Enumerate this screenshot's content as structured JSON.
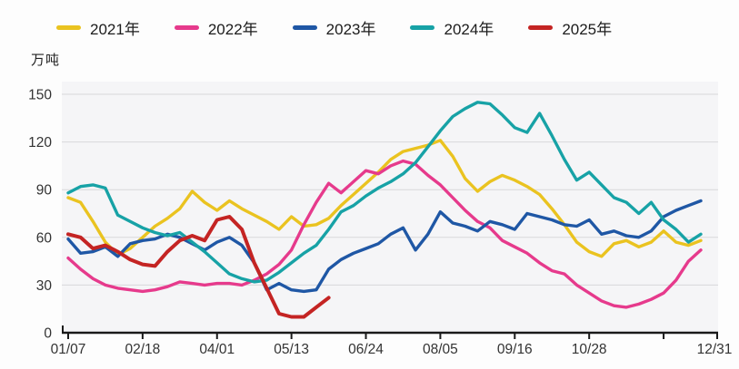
{
  "legend": [
    {
      "label": "2021年",
      "color": "#EAC320"
    },
    {
      "label": "2022年",
      "color": "#E63A8C"
    },
    {
      "label": "2023年",
      "color": "#1F57A5"
    },
    {
      "label": "2024年",
      "color": "#17A2A6"
    },
    {
      "label": "2025年",
      "color": "#C42423"
    }
  ],
  "y_axis": {
    "unit_label": "万吨",
    "tick_values": [
      0,
      30,
      60,
      90,
      120,
      150
    ]
  },
  "x_axis": {
    "ticks": [
      {
        "week": 0,
        "label": "01/07"
      },
      {
        "week": 6,
        "label": "02/18"
      },
      {
        "week": 12,
        "label": "04/01"
      },
      {
        "week": 18,
        "label": "05/13"
      },
      {
        "week": 24,
        "label": "06/24"
      },
      {
        "week": 30,
        "label": "08/05"
      },
      {
        "week": 36,
        "label": "09/16"
      },
      {
        "week": 42,
        "label": "10/28"
      },
      {
        "week": 48,
        "label": ""
      },
      {
        "week": 52.4,
        "label": "12/31"
      }
    ]
  },
  "chart_data": {
    "type": "line",
    "title": "",
    "ylabel": "万吨",
    "ylim": [
      0,
      150
    ],
    "grid": true,
    "legend_position": "top-left",
    "x_unit": "weekly points, 01/07 through 12/31",
    "series": [
      {
        "name": "2021年",
        "color": "#EAC320",
        "values": [
          85,
          82,
          70,
          57,
          49,
          53,
          60,
          67,
          72,
          78,
          89,
          82,
          77,
          83,
          78,
          74,
          70,
          65,
          73,
          67,
          68,
          72,
          80,
          87,
          94,
          101,
          109,
          114,
          116,
          118,
          121,
          111,
          97,
          89,
          95,
          99,
          96,
          92,
          87,
          78,
          68,
          57,
          51,
          48,
          56,
          58,
          54,
          57,
          64,
          57,
          55,
          58
        ]
      },
      {
        "name": "2022年",
        "color": "#E63A8C",
        "values": [
          47,
          40,
          34,
          30,
          28,
          27,
          26,
          27,
          29,
          32,
          31,
          30,
          31,
          31,
          30,
          33,
          37,
          43,
          52,
          68,
          82,
          94,
          88,
          95,
          102,
          100,
          105,
          108,
          106,
          99,
          93,
          85,
          77,
          70,
          66,
          58,
          54,
          50,
          44,
          39,
          37,
          30,
          25,
          20,
          17,
          16,
          18,
          21,
          25,
          33,
          45,
          52
        ]
      },
      {
        "name": "2023年",
        "color": "#1F57A5",
        "values": [
          59,
          50,
          51,
          54,
          48,
          56,
          58,
          59,
          62,
          60,
          56,
          52,
          57,
          60,
          55,
          44,
          27,
          31,
          27,
          26,
          27,
          40,
          46,
          50,
          53,
          56,
          62,
          66,
          52,
          62,
          76,
          69,
          67,
          64,
          70,
          68,
          65,
          75,
          73,
          71,
          68,
          67,
          71,
          62,
          64,
          61,
          60,
          64,
          73,
          77,
          80,
          83
        ]
      },
      {
        "name": "2024年",
        "color": "#17A2A6",
        "values": [
          88,
          92,
          93,
          91,
          74,
          70,
          66,
          63,
          61,
          63,
          57,
          51,
          44,
          37,
          34,
          32,
          33,
          38,
          44,
          50,
          55,
          65,
          76,
          80,
          86,
          91,
          95,
          100,
          107,
          117,
          127,
          136,
          141,
          145,
          144,
          137,
          129,
          126,
          138,
          124,
          109,
          96,
          101,
          93,
          85,
          82,
          75,
          82,
          71,
          65,
          57,
          62
        ]
      },
      {
        "name": "2025年",
        "color": "#C42423",
        "values": [
          62,
          60,
          53,
          55,
          51,
          46,
          43,
          42,
          51,
          58,
          61,
          58,
          71,
          73,
          65,
          44,
          28,
          12,
          10,
          10,
          16,
          22
        ]
      }
    ]
  }
}
